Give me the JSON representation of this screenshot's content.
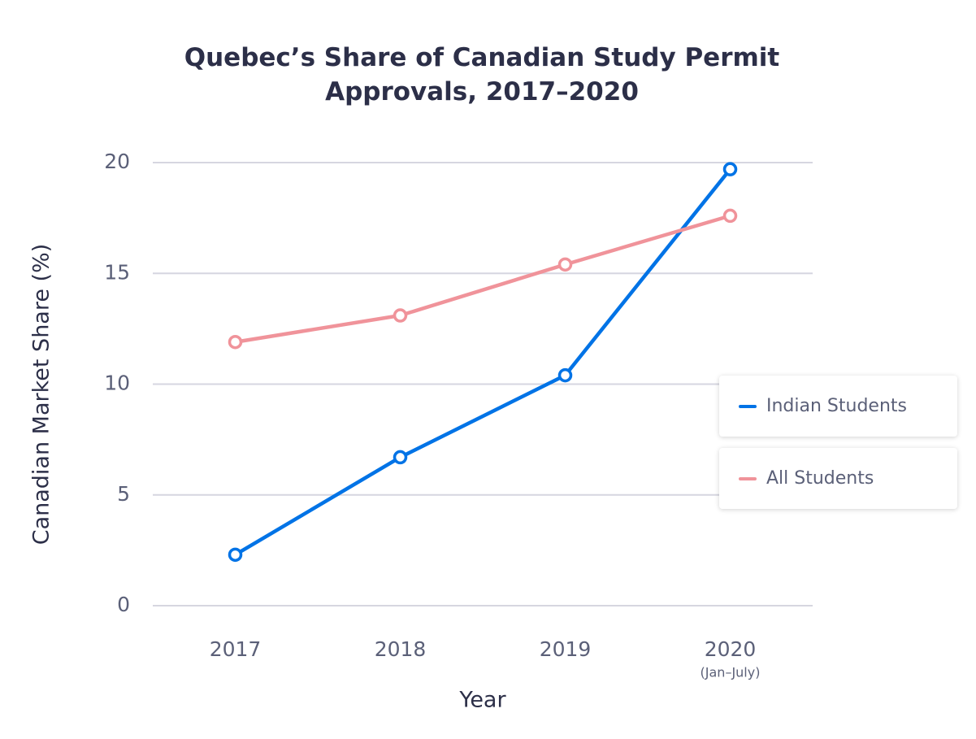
{
  "chart_data": {
    "type": "line",
    "title": "Quebec’s Share of Canadian Study Permit Approvals, 2017–2020",
    "x_label": "Year",
    "y_label": "Canadian Market Share (%)",
    "categories": [
      "2017",
      "2018",
      "2019",
      "2020"
    ],
    "category_notes": [
      null,
      null,
      null,
      "(Jan–July)"
    ],
    "series": [
      {
        "name": "Indian Students",
        "color": "#0073e6",
        "values": [
          2.3,
          6.7,
          10.4,
          19.7
        ]
      },
      {
        "name": "All Students",
        "color": "#f0939a",
        "values": [
          11.9,
          13.1,
          15.4,
          17.6
        ]
      }
    ],
    "ylim": [
      0,
      20
    ],
    "yticks": [
      0,
      5,
      10,
      15,
      20
    ],
    "grid": true,
    "legend": "right"
  }
}
